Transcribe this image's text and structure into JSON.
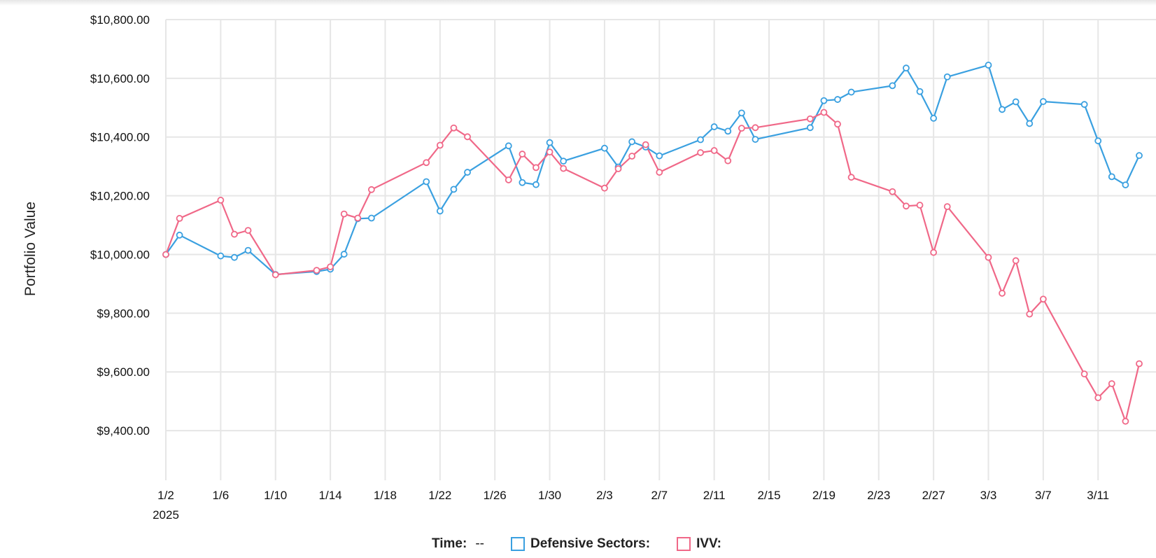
{
  "chart_data": {
    "type": "line",
    "ylabel": "Portfolio Value",
    "ylim": [
      9250,
      10800
    ],
    "yticks": [
      "$9,400.00",
      "$9,600.00",
      "$9,800.00",
      "$10,000.00",
      "$10,200.00",
      "$10,400.00",
      "$10,600.00",
      "$10,800.00"
    ],
    "ytick_values": [
      9400,
      9600,
      9800,
      10000,
      10200,
      10400,
      10600,
      10800
    ],
    "x_range": [
      "2025-01-02",
      "2025-03-14"
    ],
    "xticks": [
      {
        "date": "2025-01-02",
        "label": "1/2"
      },
      {
        "date": "2025-01-06",
        "label": "1/6"
      },
      {
        "date": "2025-01-10",
        "label": "1/10"
      },
      {
        "date": "2025-01-14",
        "label": "1/14"
      },
      {
        "date": "2025-01-18",
        "label": "1/18"
      },
      {
        "date": "2025-01-22",
        "label": "1/22"
      },
      {
        "date": "2025-01-26",
        "label": "1/26"
      },
      {
        "date": "2025-01-30",
        "label": "1/30"
      },
      {
        "date": "2025-02-03",
        "label": "2/3"
      },
      {
        "date": "2025-02-07",
        "label": "2/7"
      },
      {
        "date": "2025-02-11",
        "label": "2/11"
      },
      {
        "date": "2025-02-15",
        "label": "2/15"
      },
      {
        "date": "2025-02-19",
        "label": "2/19"
      },
      {
        "date": "2025-02-23",
        "label": "2/23"
      },
      {
        "date": "2025-02-27",
        "label": "2/27"
      },
      {
        "date": "2025-03-03",
        "label": "3/3"
      },
      {
        "date": "2025-03-07",
        "label": "3/7"
      },
      {
        "date": "2025-03-11",
        "label": "3/11"
      }
    ],
    "xtick_year": "2025",
    "grid": true,
    "x": [
      "2025-01-02",
      "2025-01-03",
      "2025-01-06",
      "2025-01-07",
      "2025-01-08",
      "2025-01-10",
      "2025-01-13",
      "2025-01-14",
      "2025-01-15",
      "2025-01-16",
      "2025-01-17",
      "2025-01-21",
      "2025-01-22",
      "2025-01-23",
      "2025-01-24",
      "2025-01-27",
      "2025-01-28",
      "2025-01-29",
      "2025-01-30",
      "2025-01-31",
      "2025-02-03",
      "2025-02-04",
      "2025-02-05",
      "2025-02-06",
      "2025-02-07",
      "2025-02-10",
      "2025-02-11",
      "2025-02-12",
      "2025-02-13",
      "2025-02-14",
      "2025-02-18",
      "2025-02-19",
      "2025-02-20",
      "2025-02-21",
      "2025-02-24",
      "2025-02-25",
      "2025-02-26",
      "2025-02-27",
      "2025-02-28",
      "2025-03-03",
      "2025-03-04",
      "2025-03-05",
      "2025-03-06",
      "2025-03-07",
      "2025-03-10",
      "2025-03-11",
      "2025-03-12",
      "2025-03-13",
      "2025-03-14"
    ],
    "series": [
      {
        "name": "Defensive Sectors:",
        "color": "#3aa0e0",
        "values": [
          10000,
          10066,
          9995,
          9990,
          10014,
          9932,
          9942,
          9950,
          10001,
          10122,
          10124,
          10248,
          10148,
          10222,
          10280,
          10370,
          10245,
          10238,
          10381,
          10318,
          10362,
          10298,
          10384,
          10366,
          10336,
          10391,
          10435,
          10420,
          10482,
          10392,
          10432,
          10524,
          10528,
          10553,
          10575,
          10635,
          10555,
          10464,
          10605,
          10645,
          10494,
          10520,
          10446,
          10521,
          10511,
          10387,
          10265,
          10237,
          10337
        ]
      },
      {
        "name": "IVV:",
        "color": "#f06888",
        "values": [
          10000,
          10123,
          10185,
          10069,
          10082,
          9931,
          9946,
          9958,
          10138,
          10124,
          10221,
          10313,
          10372,
          10431,
          10401,
          10254,
          10342,
          10296,
          10349,
          10293,
          10226,
          10292,
          10335,
          10374,
          10280,
          10347,
          10354,
          10319,
          10430,
          10432,
          10462,
          10484,
          10444,
          10263,
          10214,
          10165,
          10168,
          10007,
          10163,
          9990,
          9868,
          9979,
          9797,
          9848,
          9593,
          9512,
          9560,
          9432,
          9628
        ]
      }
    ],
    "legend": {
      "time_label": "Time:",
      "time_value": "--",
      "placement": "bottom"
    }
  }
}
